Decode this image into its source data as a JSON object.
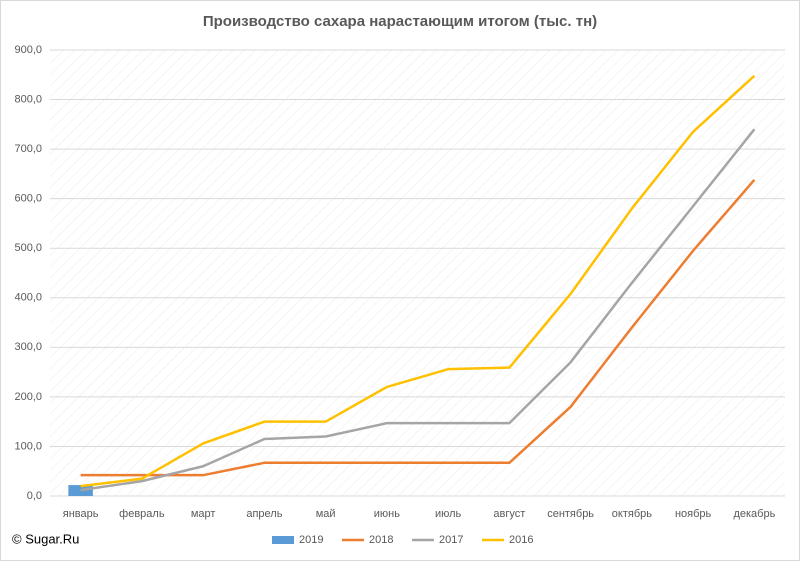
{
  "chart_data": {
    "type": "line",
    "title": "Производство сахара нарастающим итогом (тыс. тн)",
    "credit": "© Sugar.Ru",
    "categories": [
      "январь",
      "февраль",
      "март",
      "апрель",
      "май",
      "июнь",
      "июль",
      "август",
      "сентябрь",
      "октябрь",
      "ноябрь",
      "декабрь"
    ],
    "series": [
      {
        "name": "2019",
        "type": "bar",
        "color": "#5b9bd5",
        "values": [
          22,
          null,
          null,
          null,
          null,
          null,
          null,
          null,
          null,
          null,
          null,
          null
        ]
      },
      {
        "name": "2018",
        "color": "#ed7d31",
        "values": [
          42,
          42,
          42,
          67,
          67,
          67,
          67,
          67,
          180,
          340,
          495,
          638
        ]
      },
      {
        "name": "2017",
        "color": "#a5a5a5",
        "values": [
          12,
          30,
          60,
          115,
          120,
          147,
          147,
          147,
          270,
          430,
          585,
          740
        ]
      },
      {
        "name": "2016",
        "color": "#ffc000",
        "values": [
          20,
          35,
          106,
          150,
          150,
          220,
          256,
          259,
          408,
          580,
          735,
          848
        ]
      }
    ],
    "ylim": [
      0,
      900
    ],
    "yticks": [
      {
        "value": 0,
        "label": "0,0"
      },
      {
        "value": 100,
        "label": "100,0"
      },
      {
        "value": 200,
        "label": "200,0"
      },
      {
        "value": 300,
        "label": "300,0"
      },
      {
        "value": 400,
        "label": "400,0"
      },
      {
        "value": 500,
        "label": "500,0"
      },
      {
        "value": 600,
        "label": "600,0"
      },
      {
        "value": 700,
        "label": "700,0"
      },
      {
        "value": 800,
        "label": "800,0"
      },
      {
        "value": 900,
        "label": "900,0"
      }
    ],
    "grid": true,
    "legend": "bottom"
  }
}
